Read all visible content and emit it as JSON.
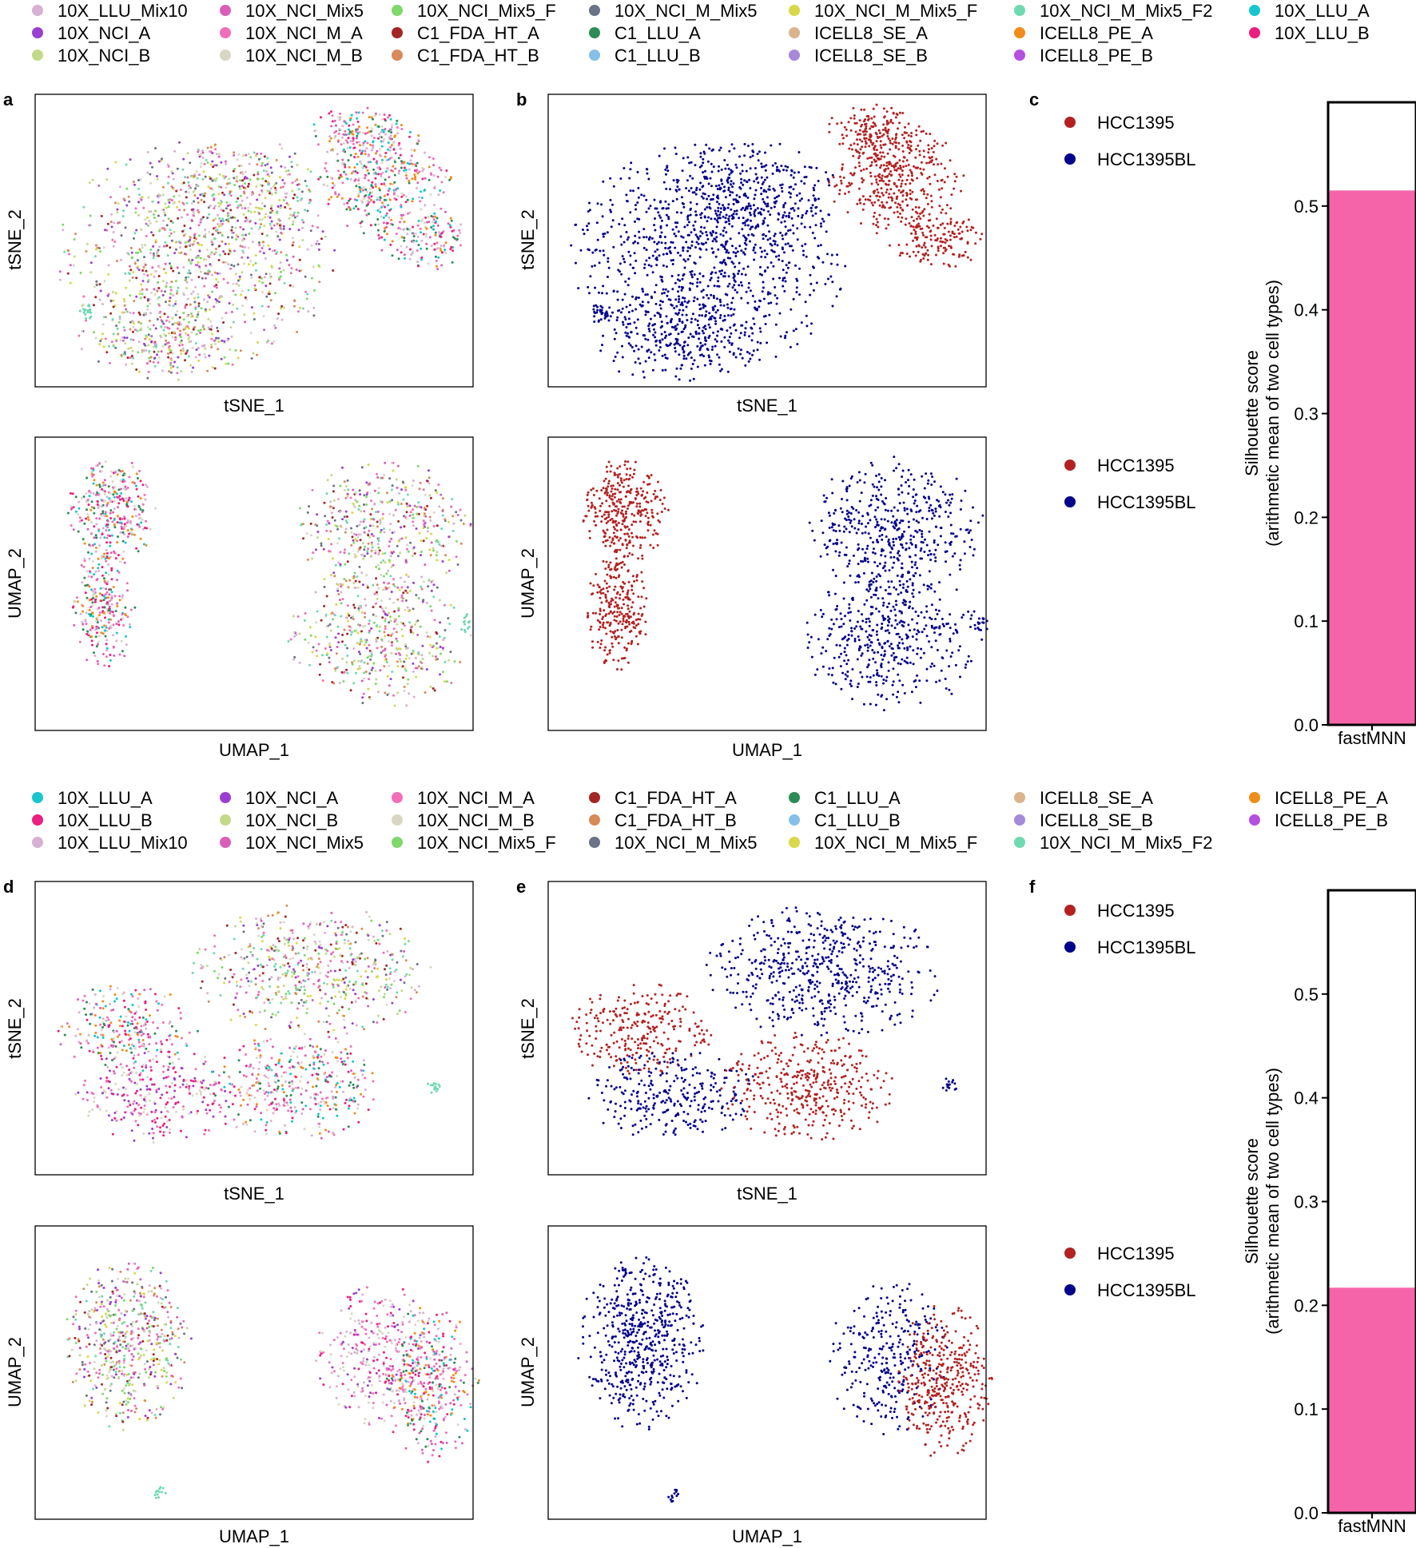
{
  "chart_data": {
    "type": "scatter",
    "legend_top": [
      {
        "label": "10X_LLU_Mix10",
        "color": "#d8b0d4"
      },
      {
        "label": "10X_NCI_Mix5",
        "color": "#d95fb8"
      },
      {
        "label": "10X_NCI_Mix5_F",
        "color": "#7ed86b"
      },
      {
        "label": "10X_NCI_M_Mix5",
        "color": "#6b7386"
      },
      {
        "label": "10X_NCI_M_Mix5_F",
        "color": "#d8d84a"
      },
      {
        "label": "10X_NCI_M_Mix5_F2",
        "color": "#6fd9b0"
      },
      {
        "label": "10X_LLU_A",
        "color": "#17c6cc"
      },
      {
        "label": "10X_NCI_A",
        "color": "#9a3fd1"
      },
      {
        "label": "10X_NCI_M_A",
        "color": "#f06fb8"
      },
      {
        "label": "C1_FDA_HT_A",
        "color": "#a32626"
      },
      {
        "label": "C1_LLU_A",
        "color": "#2e8b57"
      },
      {
        "label": "ICELL8_SE_A",
        "color": "#d9b48f"
      },
      {
        "label": "ICELL8_PE_A",
        "color": "#f08c1a"
      },
      {
        "label": "10X_LLU_B",
        "color": "#ea1f7f"
      },
      {
        "label": "10X_NCI_B",
        "color": "#c3d98a"
      },
      {
        "label": "10X_NCI_M_B",
        "color": "#d9d6c4"
      },
      {
        "label": "C1_FDA_HT_B",
        "color": "#d98a5a"
      },
      {
        "label": "C1_LLU_B",
        "color": "#86bfe8"
      },
      {
        "label": "ICELL8_SE_B",
        "color": "#a58ad9"
      },
      {
        "label": "ICELL8_PE_B",
        "color": "#b44fe0"
      }
    ],
    "legend_bottom": [
      {
        "label": "10X_LLU_A",
        "color": "#17c6cc"
      },
      {
        "label": "10X_NCI_A",
        "color": "#9a3fd1"
      },
      {
        "label": "10X_NCI_M_A",
        "color": "#f06fb8"
      },
      {
        "label": "C1_FDA_HT_A",
        "color": "#a32626"
      },
      {
        "label": "C1_LLU_A",
        "color": "#2e8b57"
      },
      {
        "label": "ICELL8_SE_A",
        "color": "#d9b48f"
      },
      {
        "label": "ICELL8_PE_A",
        "color": "#f08c1a"
      },
      {
        "label": "10X_LLU_B",
        "color": "#ea1f7f"
      },
      {
        "label": "10X_NCI_B",
        "color": "#c3d98a"
      },
      {
        "label": "10X_NCI_M_B",
        "color": "#d9d6c4"
      },
      {
        "label": "C1_FDA_HT_B",
        "color": "#d98a5a"
      },
      {
        "label": "C1_LLU_B",
        "color": "#86bfe8"
      },
      {
        "label": "ICELL8_SE_B",
        "color": "#a58ad9"
      },
      {
        "label": "ICELL8_PE_B",
        "color": "#b44fe0"
      },
      {
        "label": "10X_LLU_Mix10",
        "color": "#d8b0d4"
      },
      {
        "label": "10X_NCI_Mix5",
        "color": "#d95fb8"
      },
      {
        "label": "10X_NCI_Mix5_F",
        "color": "#7ed86b"
      },
      {
        "label": "10X_NCI_M_Mix5",
        "color": "#6b7386"
      },
      {
        "label": "10X_NCI_M_Mix5_F",
        "color": "#d8d84a"
      },
      {
        "label": "10X_NCI_M_Mix5_F2",
        "color": "#6fd9b0"
      }
    ],
    "cell_types": [
      {
        "label": "HCC1395",
        "color": "#b22222"
      },
      {
        "label": "HCC1395BL",
        "color": "#00008b"
      }
    ],
    "panels": {
      "a": {
        "letter": "a",
        "xlabel": "tSNE_1",
        "ylabel": "tSNE_2",
        "umap_xlabel": "UMAP_1",
        "umap_ylabel": "UMAP_2"
      },
      "b": {
        "letter": "b",
        "xlabel": "tSNE_1",
        "ylabel": "tSNE_2",
        "umap_xlabel": "UMAP_1",
        "umap_ylabel": "UMAP_2"
      },
      "d": {
        "letter": "d",
        "xlabel": "tSNE_1",
        "ylabel": "tSNE_2",
        "umap_xlabel": "UMAP_1",
        "umap_ylabel": "UMAP_2"
      },
      "e": {
        "letter": "e",
        "xlabel": "tSNE_1",
        "ylabel": "tSNE_2",
        "umap_xlabel": "UMAP_1",
        "umap_ylabel": "UMAP_2"
      }
    },
    "bars": [
      {
        "letter": "c",
        "type": "bar",
        "categories": [
          "fastMNN"
        ],
        "values": [
          0.515
        ],
        "ylim": [
          0,
          0.6
        ],
        "yticks": [
          "0.0",
          "0.1",
          "0.2",
          "0.3",
          "0.4",
          "0.5"
        ],
        "ylabel_line1": "Silhouette score",
        "ylabel_line2": "(arithmetic mean of two cell types)",
        "bar_color": "#f564a9"
      },
      {
        "letter": "f",
        "type": "bar",
        "categories": [
          "fastMNN"
        ],
        "values": [
          0.217
        ],
        "ylim": [
          0,
          0.6
        ],
        "yticks": [
          "0.0",
          "0.1",
          "0.2",
          "0.3",
          "0.4",
          "0.5"
        ],
        "ylabel_line1": "Silhouette score",
        "ylabel_line2": "(arithmetic mean of two cell types)",
        "bar_color": "#f564a9"
      }
    ]
  }
}
